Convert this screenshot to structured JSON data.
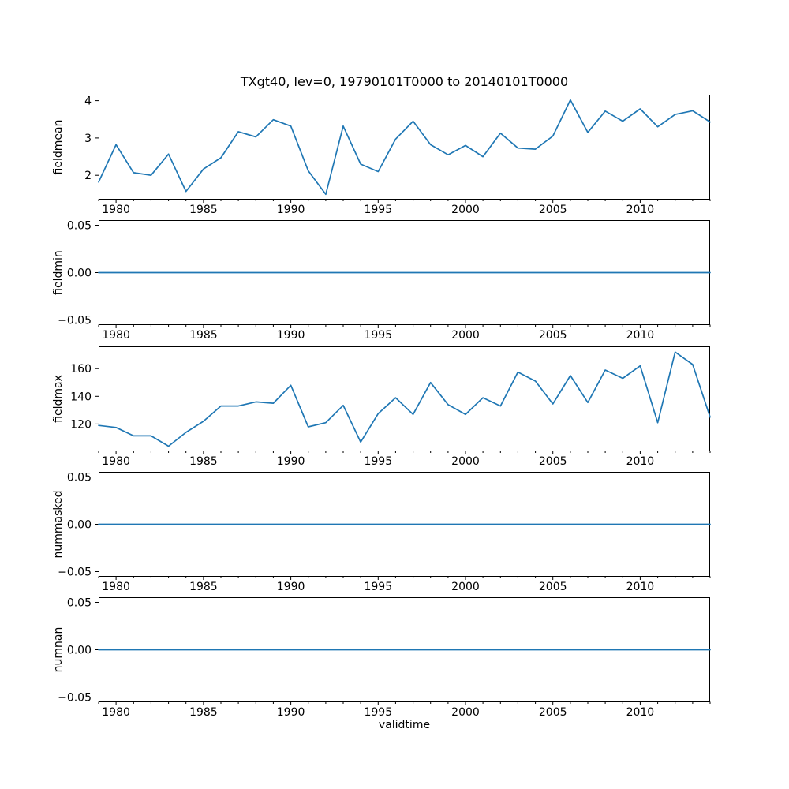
{
  "figure": {
    "title": "TXgt40, lev=0, 19790101T0000 to 20140101T0000",
    "xlabel": "validtime",
    "line_color": "#1f77b4",
    "background_color": "#ffffff",
    "axis_color": "#000000"
  },
  "x_axis": {
    "xlim": [
      1979,
      2014
    ],
    "years": [
      1979,
      1980,
      1981,
      1982,
      1983,
      1984,
      1985,
      1986,
      1987,
      1988,
      1989,
      1990,
      1991,
      1992,
      1993,
      1994,
      1995,
      1996,
      1997,
      1998,
      1999,
      2000,
      2001,
      2002,
      2003,
      2004,
      2005,
      2006,
      2007,
      2008,
      2009,
      2010,
      2011,
      2012,
      2013,
      2014
    ],
    "major_ticks": [
      1980,
      1985,
      1990,
      1995,
      2000,
      2005,
      2010
    ],
    "major_tick_labels": [
      "1980",
      "1985",
      "1990",
      "1995",
      "2000",
      "2005",
      "2010"
    ],
    "minor_ticks_every": 1
  },
  "chart_data": [
    {
      "type": "line",
      "ylabel": "fieldmean",
      "ylim": [
        1.36,
        4.15
      ],
      "yticks": [
        2,
        3,
        4
      ],
      "ytick_labels": [
        "2",
        "3",
        "4"
      ],
      "values": [
        1.82,
        2.82,
        2.07,
        2.0,
        2.57,
        1.57,
        2.17,
        2.47,
        3.17,
        3.03,
        3.49,
        3.32,
        2.12,
        1.49,
        3.32,
        2.3,
        2.1,
        2.97,
        3.45,
        2.82,
        2.55,
        2.8,
        2.5,
        3.13,
        2.73,
        2.7,
        3.05,
        4.02,
        3.15,
        3.72,
        3.45,
        3.78,
        3.3,
        3.63,
        3.73,
        3.43
      ]
    },
    {
      "type": "line",
      "ylabel": "fieldmin",
      "ylim": [
        -0.055,
        0.055
      ],
      "yticks": [
        0.05,
        0.0,
        -0.05
      ],
      "ytick_labels": [
        "0.05",
        "0.00",
        "−0.05"
      ],
      "values": [
        0,
        0,
        0,
        0,
        0,
        0,
        0,
        0,
        0,
        0,
        0,
        0,
        0,
        0,
        0,
        0,
        0,
        0,
        0,
        0,
        0,
        0,
        0,
        0,
        0,
        0,
        0,
        0,
        0,
        0,
        0,
        0,
        0,
        0,
        0,
        0
      ]
    },
    {
      "type": "line",
      "ylabel": "fieldmax",
      "ylim": [
        100.6,
        175.8
      ],
      "yticks": [
        120,
        140,
        160
      ],
      "ytick_labels": [
        "120",
        "140",
        "160"
      ],
      "values": [
        119,
        117.5,
        111.5,
        111.5,
        104,
        114,
        122,
        133,
        133,
        136,
        135,
        148,
        118,
        121,
        133.5,
        107,
        127.5,
        139,
        127,
        150,
        134,
        127,
        139,
        133,
        157.5,
        151,
        134.5,
        155,
        135.5,
        159,
        153,
        162,
        121,
        172,
        163,
        125
      ]
    },
    {
      "type": "line",
      "ylabel": "nummasked",
      "ylim": [
        -0.055,
        0.055
      ],
      "yticks": [
        0.05,
        0.0,
        -0.05
      ],
      "ytick_labels": [
        "0.05",
        "0.00",
        "−0.05"
      ],
      "values": [
        0,
        0,
        0,
        0,
        0,
        0,
        0,
        0,
        0,
        0,
        0,
        0,
        0,
        0,
        0,
        0,
        0,
        0,
        0,
        0,
        0,
        0,
        0,
        0,
        0,
        0,
        0,
        0,
        0,
        0,
        0,
        0,
        0,
        0,
        0,
        0
      ]
    },
    {
      "type": "line",
      "ylabel": "numnan",
      "ylim": [
        -0.055,
        0.055
      ],
      "yticks": [
        0.05,
        0.0,
        -0.05
      ],
      "ytick_labels": [
        "0.05",
        "0.00",
        "−0.05"
      ],
      "values": [
        0,
        0,
        0,
        0,
        0,
        0,
        0,
        0,
        0,
        0,
        0,
        0,
        0,
        0,
        0,
        0,
        0,
        0,
        0,
        0,
        0,
        0,
        0,
        0,
        0,
        0,
        0,
        0,
        0,
        0,
        0,
        0,
        0,
        0,
        0,
        0
      ]
    }
  ]
}
